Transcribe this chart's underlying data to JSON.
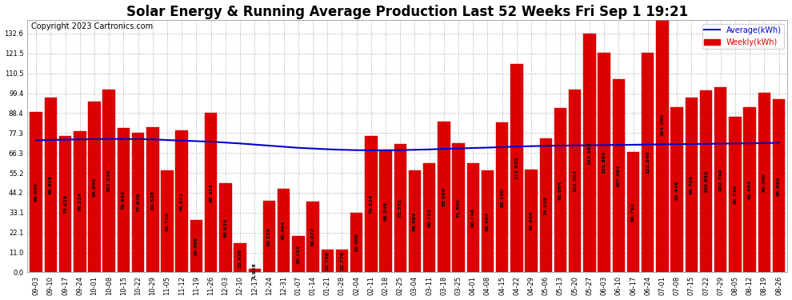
{
  "title": "Solar Energy & Running Average Production Last 52 Weeks Fri Sep 1 19:21",
  "copyright": "Copyright 2023 Cartronics.com",
  "legend_avg": "Average(kWh)",
  "legend_weekly": "Weekly(kWh)",
  "categories": [
    "09-03",
    "09-10",
    "09-17",
    "09-24",
    "10-01",
    "10-08",
    "10-15",
    "10-22",
    "10-29",
    "11-05",
    "11-12",
    "11-19",
    "11-26",
    "12-03",
    "12-10",
    "12-17",
    "12-24",
    "12-31",
    "01-07",
    "01-14",
    "01-21",
    "01-28",
    "02-04",
    "02-11",
    "02-18",
    "02-25",
    "03-04",
    "03-11",
    "03-18",
    "03-25",
    "04-01",
    "04-08",
    "04-15",
    "04-22",
    "04-29",
    "05-06",
    "05-13",
    "05-20",
    "05-27",
    "06-03",
    "06-10",
    "06-17",
    "06-24",
    "07-01",
    "07-08",
    "07-15",
    "07-22",
    "07-29",
    "08-05",
    "08-12",
    "08-19",
    "08-26"
  ],
  "weekly_values": [
    89.02,
    96.808,
    75.616,
    78.224,
    94.64,
    101.536,
    79.992,
    77.636,
    80.528,
    56.716,
    78.572,
    29.088,
    88.528,
    49.624,
    15.936,
    1.928,
    39.528,
    46.464,
    20.152,
    39.072,
    12.796,
    12.776,
    33.008,
    75.824,
    68.248,
    71.372,
    56.584,
    60.712,
    83.596,
    71.5,
    60.748,
    56.484,
    83.1,
    115.632,
    56.944,
    74.528,
    91.064,
    101.592,
    132.392,
    121.884,
    107.064,
    66.792,
    121.84,
    164.2,
    91.448,
    96.76,
    100.852,
    102.768,
    86.24,
    91.584,
    99.5,
    95.892
  ],
  "average_values": [
    73.2,
    73.5,
    73.6,
    73.8,
    73.9,
    74.0,
    74.0,
    73.9,
    73.8,
    73.4,
    73.1,
    72.8,
    72.5,
    72.0,
    71.5,
    70.9,
    70.3,
    69.7,
    69.1,
    68.7,
    68.3,
    68.0,
    67.8,
    67.7,
    67.7,
    67.8,
    68.0,
    68.2,
    68.5,
    68.7,
    69.0,
    69.2,
    69.5,
    69.8,
    70.0,
    70.2,
    70.3,
    70.4,
    70.5,
    70.6,
    70.7,
    70.8,
    70.9,
    71.0,
    71.1,
    71.2,
    71.3,
    71.4,
    71.5,
    71.6,
    71.7,
    71.9
  ],
  "bar_color": "#dd0000",
  "bar_edge_color": "#bb0000",
  "line_color": "#0000cc",
  "background_color": "#ffffff",
  "grid_color": "#bbbbbb",
  "yticks": [
    0.0,
    11.0,
    22.1,
    33.1,
    44.2,
    55.2,
    66.3,
    77.3,
    88.4,
    99.4,
    110.5,
    121.5,
    132.6
  ],
  "ylim": [
    0,
    140
  ],
  "title_fontsize": 12,
  "tick_fontsize": 6.0,
  "value_fontsize": 4.5,
  "copyright_fontsize": 7
}
